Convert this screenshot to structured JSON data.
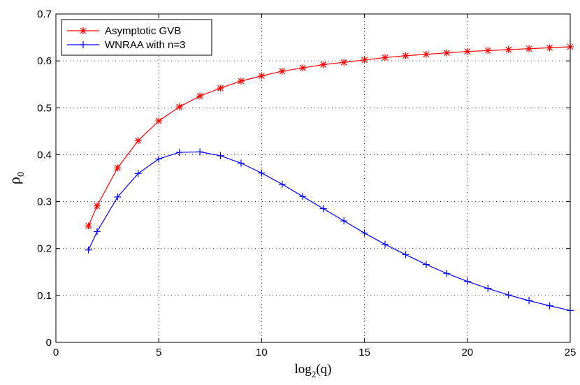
{
  "chart_data": {
    "type": "line",
    "title": "",
    "xlabel": "log",
    "xlabel_sub": "2",
    "xlabel_tail": "(q)",
    "ylabel": "ρ",
    "ylabel_sub": "0",
    "xlim": [
      0,
      25
    ],
    "ylim": [
      0,
      0.7
    ],
    "xticks": [
      0,
      5,
      10,
      15,
      20,
      25
    ],
    "yticks": [
      0,
      0.1,
      0.2,
      0.3,
      0.4,
      0.5,
      0.6,
      0.7
    ],
    "xtick_labels": [
      "0",
      "5",
      "10",
      "15",
      "20",
      "25"
    ],
    "ytick_labels": [
      "0",
      "0.1",
      "0.2",
      "0.3",
      "0.4",
      "0.5",
      "0.6",
      "0.7"
    ],
    "grid": true,
    "legend_position": "top-left",
    "series": [
      {
        "name": "Asymptotic GVB",
        "color": "#ff0000",
        "marker": "asterisk",
        "x": [
          1.585,
          2,
          3,
          4,
          5,
          6,
          7,
          8,
          9,
          10,
          11,
          12,
          13,
          14,
          15,
          16,
          17,
          18,
          19,
          20,
          21,
          22,
          23,
          24,
          25
        ],
        "y": [
          0.248,
          0.291,
          0.372,
          0.43,
          0.472,
          0.502,
          0.525,
          0.542,
          0.557,
          0.568,
          0.578,
          0.585,
          0.592,
          0.597,
          0.602,
          0.607,
          0.611,
          0.614,
          0.617,
          0.62,
          0.622,
          0.624,
          0.626,
          0.628,
          0.63
        ]
      },
      {
        "name": "WNRAA with n=3",
        "color": "#0000ff",
        "marker": "plus",
        "x": [
          1.585,
          2,
          3,
          4,
          5,
          6,
          7,
          8,
          9,
          10,
          11,
          12,
          13,
          14,
          15,
          16,
          17,
          18,
          19,
          20,
          21,
          22,
          23,
          24,
          25
        ],
        "y": [
          0.197,
          0.236,
          0.31,
          0.36,
          0.391,
          0.405,
          0.406,
          0.398,
          0.382,
          0.361,
          0.337,
          0.311,
          0.285,
          0.259,
          0.233,
          0.209,
          0.187,
          0.166,
          0.147,
          0.13,
          0.115,
          0.101,
          0.089,
          0.078,
          0.068
        ]
      }
    ]
  }
}
